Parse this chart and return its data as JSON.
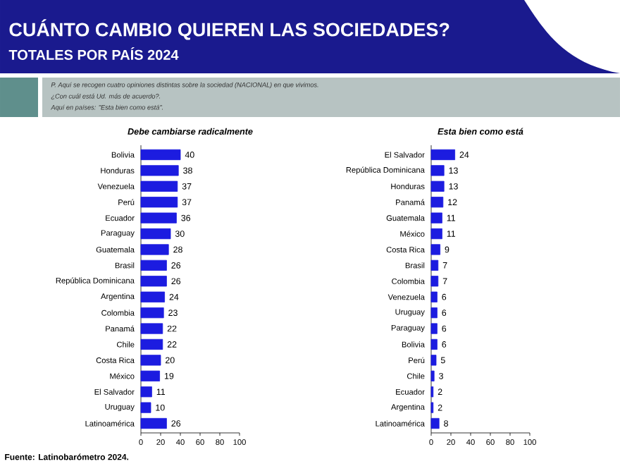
{
  "chart_data": [
    {
      "type": "other",
      "title": "CUÁNTO CAMBIO QUIEREN LAS SOCIEDADES?",
      "subtitle": "TOTALES POR PAÍS 2024",
      "annotations": [
        "P. Aquí se recogen cuatro opiniones distintas sobre la sociedad (NACIONAL) en que vivimos.",
        "¿Con cuál está Ud. más de acuerdo?.",
        "Aquí en países: \"Esta bien como está\".",
        "Fuente: Latinobarómetro 2024."
      ]
    },
    {
      "type": "bar",
      "orientation": "horizontal",
      "title": "Debe cambiarse radicalmente",
      "color": "#1c1ce0",
      "data_labels": true,
      "xlim": [
        0,
        100
      ],
      "xticks": [
        0,
        20,
        40,
        60,
        80,
        100
      ],
      "categories": [
        "Bolivia",
        "Honduras",
        "Venezuela",
        "Perú",
        "Ecuador",
        "Paraguay",
        "Guatemala",
        "Brasil",
        "República Dominicana",
        "Argentina",
        "Colombia",
        "Panamá",
        "Chile",
        "Costa Rica",
        "México",
        "El Salvador",
        "Uruguay",
        "Latinoamérica"
      ],
      "values": [
        40,
        38,
        37,
        37,
        36,
        30,
        28,
        26,
        26,
        24,
        23,
        22,
        22,
        20,
        19,
        11,
        10,
        26
      ]
    },
    {
      "type": "bar",
      "orientation": "horizontal",
      "title": "Esta bien como está",
      "color": "#1c1ce0",
      "data_labels": true,
      "xlim": [
        0,
        100
      ],
      "xticks": [
        0,
        20,
        40,
        60,
        80,
        100
      ],
      "categories": [
        "El Salvador",
        "República Dominicana",
        "Honduras",
        "Panamá",
        "Guatemala",
        "México",
        "Costa Rica",
        "Brasil",
        "Colombia",
        "Venezuela",
        "Uruguay",
        "Paraguay",
        "Bolivia",
        "Perú",
        "Chile",
        "Ecuador",
        "Argentina",
        "Latinoamérica"
      ],
      "values": [
        24,
        13,
        13,
        12,
        11,
        11,
        9,
        7,
        7,
        6,
        6,
        6,
        6,
        5,
        3,
        2,
        2,
        8
      ]
    }
  ]
}
